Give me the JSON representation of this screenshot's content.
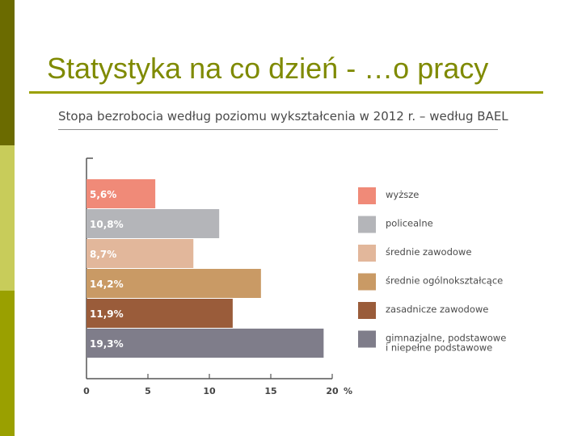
{
  "slide": {
    "title": "Statystyka na co dzień - …o pracy",
    "accent_colors": [
      "#6b6b00",
      "#c8cc5a",
      "#9aa000"
    ]
  },
  "chart_data": {
    "type": "bar",
    "orientation": "horizontal",
    "title": "Stopa bezrobocia według poziomu wykształcenia w 2012 r. – według BAEL",
    "xlabel": "%",
    "xlim": [
      0,
      20
    ],
    "xticks": [
      0,
      5,
      10,
      15,
      20
    ],
    "grid": false,
    "legend_position": "right",
    "categories": [
      "wyższe",
      "policealne",
      "średnie zawodowe",
      "średnie ogólnokształcące",
      "zasadnicze zawodowe",
      "gimnazjalne, podstawowe i niepełne podstawowe"
    ],
    "values": [
      5.6,
      10.8,
      8.7,
      14.2,
      11.9,
      19.3
    ],
    "value_labels": [
      "5,6%",
      "10,8%",
      "8,7%",
      "14,2%",
      "11,9%",
      "19,3%"
    ],
    "colors": [
      "#f08a78",
      "#b4b5b9",
      "#e2b79b",
      "#c99a65",
      "#9a5c3a",
      "#7f7d8a"
    ],
    "legend": [
      [
        "wyższe"
      ],
      [
        "policealne"
      ],
      [
        "średnie zawodowe"
      ],
      [
        "średnie ogólnokształcące"
      ],
      [
        "zasadnicze zawodowe"
      ],
      [
        "gimnazjalne, podstawowe",
        "i niepełne podstawowe"
      ]
    ]
  }
}
